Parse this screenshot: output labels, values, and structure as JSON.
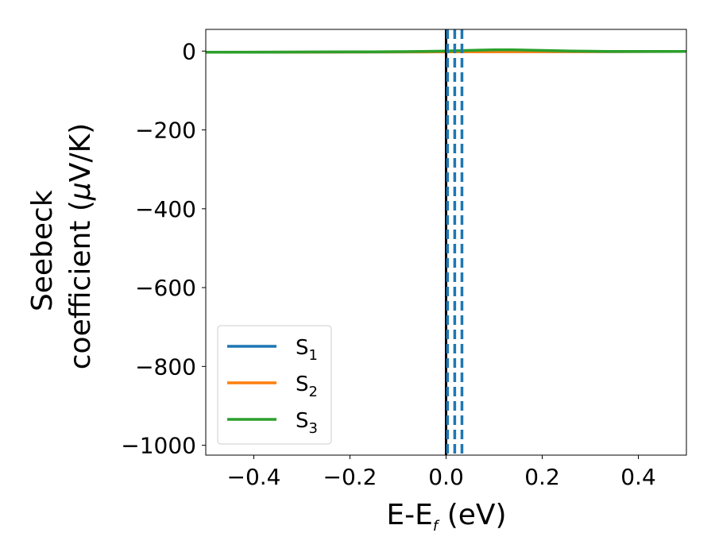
{
  "chart_data": {
    "type": "line",
    "xlabel": "E-E",
    "xlabel_sub": "f",
    "xlabel_unit": " (eV)",
    "ylabel_line1": "Seebeck",
    "ylabel_line2_prefix": "coefficient  (",
    "ylabel_mu": "μ",
    "ylabel_line2_suffix": "V/K)",
    "xlim": [
      -0.5,
      0.5
    ],
    "ylim": [
      -1025,
      55
    ],
    "xticks": [
      -0.4,
      -0.2,
      0.0,
      0.2,
      0.4
    ],
    "xtick_labels": [
      "−0.4",
      "−0.2",
      "0.0",
      "0.2",
      "0.4"
    ],
    "yticks": [
      0,
      -200,
      -400,
      -600,
      -800,
      -1000
    ],
    "ytick_labels": [
      "0",
      "−200",
      "−400",
      "−600",
      "−800",
      "−1000"
    ],
    "fermi_line_x": 0.0,
    "dashed_lines_x": [
      0.003,
      0.018,
      0.033
    ],
    "legend_location": "lower-left",
    "colors": {
      "S1": "#1f77b4",
      "S2": "#ff7f0e",
      "S3": "#2ca02c",
      "fermi": "#000000"
    },
    "series": [
      {
        "name": "S",
        "sub": "1",
        "color": "#1f77b4",
        "x": [
          -0.5,
          0.5
        ],
        "y": [
          -3,
          -1
        ]
      },
      {
        "name": "S",
        "sub": "2",
        "color": "#ff7f0e",
        "x": [
          -0.5,
          0.5
        ],
        "y": [
          -3,
          -1
        ]
      },
      {
        "name": "S",
        "sub": "3",
        "color": "#2ca02c",
        "x": [
          -0.5,
          -0.4,
          -0.3,
          -0.2,
          -0.15,
          -0.1,
          -0.05,
          -0.02,
          0.0,
          0.03,
          0.06,
          0.1,
          0.14,
          0.18,
          0.22,
          0.26,
          0.3,
          0.35,
          0.4,
          0.45,
          0.5
        ],
        "y": [
          -3,
          -3,
          -2.5,
          -2,
          -2,
          -1.5,
          -1,
          -0.5,
          0,
          1,
          2,
          3,
          3,
          2,
          1,
          0,
          -0.5,
          -1,
          -1,
          -1,
          -1
        ]
      }
    ]
  }
}
